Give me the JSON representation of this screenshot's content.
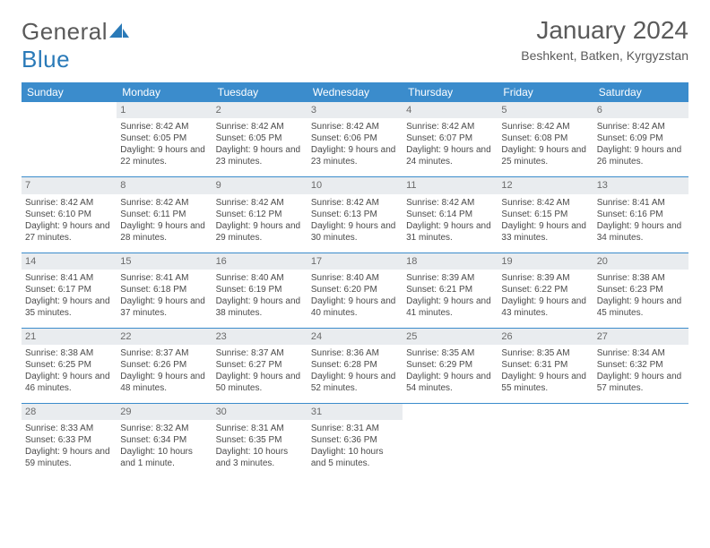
{
  "brand": {
    "name_part1": "General",
    "name_part2": "Blue"
  },
  "title": "January 2024",
  "location": "Beshkent, Batken, Kyrgyzstan",
  "colors": {
    "header_bg": "#3b8ccc",
    "header_fg": "#ffffff",
    "daynum_bg": "#e9ecef",
    "border": "#3b8ccc",
    "text": "#4a4a4a",
    "title": "#5a5a5a",
    "brand_blue": "#2a7ab8"
  },
  "weekdays": [
    "Sunday",
    "Monday",
    "Tuesday",
    "Wednesday",
    "Thursday",
    "Friday",
    "Saturday"
  ],
  "start_offset": 1,
  "days": [
    {
      "n": "1",
      "sunrise": "8:42 AM",
      "sunset": "6:05 PM",
      "daylight": "9 hours and 22 minutes."
    },
    {
      "n": "2",
      "sunrise": "8:42 AM",
      "sunset": "6:05 PM",
      "daylight": "9 hours and 23 minutes."
    },
    {
      "n": "3",
      "sunrise": "8:42 AM",
      "sunset": "6:06 PM",
      "daylight": "9 hours and 23 minutes."
    },
    {
      "n": "4",
      "sunrise": "8:42 AM",
      "sunset": "6:07 PM",
      "daylight": "9 hours and 24 minutes."
    },
    {
      "n": "5",
      "sunrise": "8:42 AM",
      "sunset": "6:08 PM",
      "daylight": "9 hours and 25 minutes."
    },
    {
      "n": "6",
      "sunrise": "8:42 AM",
      "sunset": "6:09 PM",
      "daylight": "9 hours and 26 minutes."
    },
    {
      "n": "7",
      "sunrise": "8:42 AM",
      "sunset": "6:10 PM",
      "daylight": "9 hours and 27 minutes."
    },
    {
      "n": "8",
      "sunrise": "8:42 AM",
      "sunset": "6:11 PM",
      "daylight": "9 hours and 28 minutes."
    },
    {
      "n": "9",
      "sunrise": "8:42 AM",
      "sunset": "6:12 PM",
      "daylight": "9 hours and 29 minutes."
    },
    {
      "n": "10",
      "sunrise": "8:42 AM",
      "sunset": "6:13 PM",
      "daylight": "9 hours and 30 minutes."
    },
    {
      "n": "11",
      "sunrise": "8:42 AM",
      "sunset": "6:14 PM",
      "daylight": "9 hours and 31 minutes."
    },
    {
      "n": "12",
      "sunrise": "8:42 AM",
      "sunset": "6:15 PM",
      "daylight": "9 hours and 33 minutes."
    },
    {
      "n": "13",
      "sunrise": "8:41 AM",
      "sunset": "6:16 PM",
      "daylight": "9 hours and 34 minutes."
    },
    {
      "n": "14",
      "sunrise": "8:41 AM",
      "sunset": "6:17 PM",
      "daylight": "9 hours and 35 minutes."
    },
    {
      "n": "15",
      "sunrise": "8:41 AM",
      "sunset": "6:18 PM",
      "daylight": "9 hours and 37 minutes."
    },
    {
      "n": "16",
      "sunrise": "8:40 AM",
      "sunset": "6:19 PM",
      "daylight": "9 hours and 38 minutes."
    },
    {
      "n": "17",
      "sunrise": "8:40 AM",
      "sunset": "6:20 PM",
      "daylight": "9 hours and 40 minutes."
    },
    {
      "n": "18",
      "sunrise": "8:39 AM",
      "sunset": "6:21 PM",
      "daylight": "9 hours and 41 minutes."
    },
    {
      "n": "19",
      "sunrise": "8:39 AM",
      "sunset": "6:22 PM",
      "daylight": "9 hours and 43 minutes."
    },
    {
      "n": "20",
      "sunrise": "8:38 AM",
      "sunset": "6:23 PM",
      "daylight": "9 hours and 45 minutes."
    },
    {
      "n": "21",
      "sunrise": "8:38 AM",
      "sunset": "6:25 PM",
      "daylight": "9 hours and 46 minutes."
    },
    {
      "n": "22",
      "sunrise": "8:37 AM",
      "sunset": "6:26 PM",
      "daylight": "9 hours and 48 minutes."
    },
    {
      "n": "23",
      "sunrise": "8:37 AM",
      "sunset": "6:27 PM",
      "daylight": "9 hours and 50 minutes."
    },
    {
      "n": "24",
      "sunrise": "8:36 AM",
      "sunset": "6:28 PM",
      "daylight": "9 hours and 52 minutes."
    },
    {
      "n": "25",
      "sunrise": "8:35 AM",
      "sunset": "6:29 PM",
      "daylight": "9 hours and 54 minutes."
    },
    {
      "n": "26",
      "sunrise": "8:35 AM",
      "sunset": "6:31 PM",
      "daylight": "9 hours and 55 minutes."
    },
    {
      "n": "27",
      "sunrise": "8:34 AM",
      "sunset": "6:32 PM",
      "daylight": "9 hours and 57 minutes."
    },
    {
      "n": "28",
      "sunrise": "8:33 AM",
      "sunset": "6:33 PM",
      "daylight": "9 hours and 59 minutes."
    },
    {
      "n": "29",
      "sunrise": "8:32 AM",
      "sunset": "6:34 PM",
      "daylight": "10 hours and 1 minute."
    },
    {
      "n": "30",
      "sunrise": "8:31 AM",
      "sunset": "6:35 PM",
      "daylight": "10 hours and 3 minutes."
    },
    {
      "n": "31",
      "sunrise": "8:31 AM",
      "sunset": "6:36 PM",
      "daylight": "10 hours and 5 minutes."
    }
  ],
  "labels": {
    "sunrise": "Sunrise:",
    "sunset": "Sunset:",
    "daylight": "Daylight:"
  }
}
